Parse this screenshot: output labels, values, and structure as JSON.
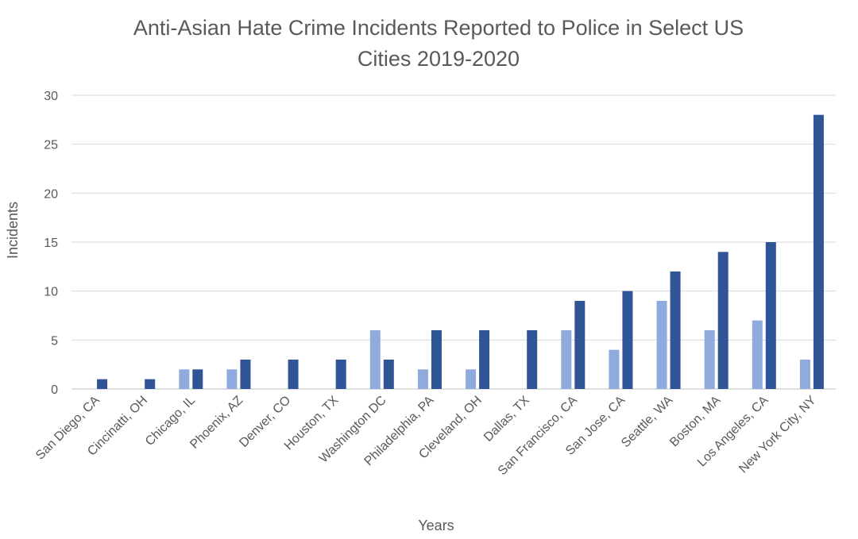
{
  "chart_data": {
    "type": "bar",
    "title": "Anti-Asian Hate Crime Incidents Reported to Police in Select US Cities 2019-2020",
    "title_lines": [
      "Anti-Asian Hate Crime Incidents Reported to Police in Select US",
      "Cities 2019-2020"
    ],
    "xlabel": "Years",
    "ylabel": "Incidents",
    "ylim": [
      0,
      30
    ],
    "yticks": [
      0,
      5,
      10,
      15,
      20,
      25,
      30
    ],
    "grid": true,
    "legend": "none",
    "categories": [
      "San Diego, CA",
      "Cincinatti, OH",
      "Chicago, IL",
      "Phoenix, AZ",
      "Denver, CO",
      "Houston, TX",
      "Washington DC",
      "Philadelphia, PA",
      "Cleveland, OH",
      "Dallas, TX",
      "San Francisco, CA",
      "San Jose, CA",
      "Seattle, WA",
      "Boston, MA",
      "Los Angeles, CA",
      "New York City, NY"
    ],
    "series": [
      {
        "color": "#8faadc",
        "values": [
          0,
          0,
          2,
          2,
          0,
          0,
          6,
          2,
          2,
          0,
          6,
          4,
          9,
          6,
          7,
          3
        ]
      },
      {
        "color": "#2f5597",
        "values": [
          1,
          1,
          2,
          3,
          3,
          3,
          3,
          6,
          6,
          6,
          9,
          10,
          12,
          14,
          15,
          28
        ]
      }
    ]
  }
}
